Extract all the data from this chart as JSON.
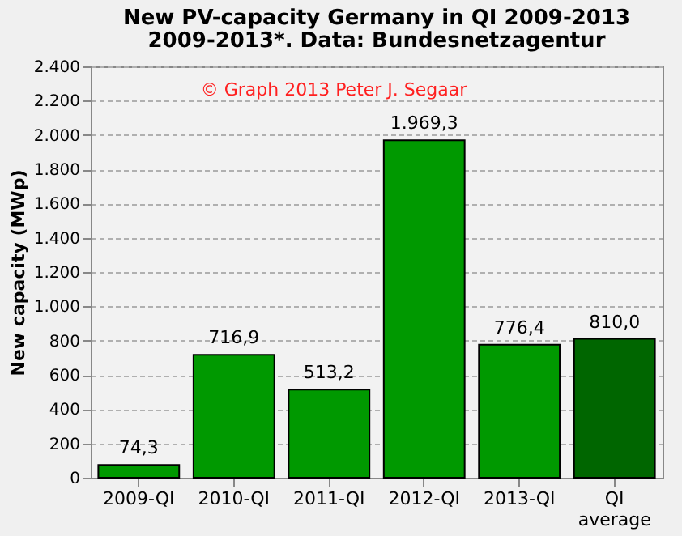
{
  "chart_data": {
    "type": "bar",
    "title": "New PV-capacity Germany in QI 2009-2013",
    "subtitle": "2009-2013*. Data: Bundesnetzagentur",
    "ylabel": "New capacity (MWp)",
    "annotations": [
      "© Graph 2013 Peter J. Segaar"
    ],
    "categories": [
      "2009-QI",
      "2010-QI",
      "2011-QI",
      "2012-QI",
      "2013-QI",
      "QI average"
    ],
    "values": [
      74.3,
      716.9,
      513.2,
      1969.3,
      776.4,
      810.0
    ],
    "value_labels": [
      "74,3",
      "716,9",
      "513,2",
      "1.969,3",
      "776,4",
      "810,0"
    ],
    "colors": [
      "#009900",
      "#009900",
      "#009900",
      "#009900",
      "#009900",
      "#006600"
    ],
    "ylim": [
      0,
      2400
    ],
    "yticks": [
      0,
      200,
      400,
      600,
      800,
      {
        "value": 1000,
        "label": "1.000"
      },
      {
        "value": 1200,
        "label": "1.200"
      },
      {
        "value": 1400,
        "label": "1.400"
      },
      {
        "value": 1600,
        "label": "1.600"
      },
      {
        "value": 1800,
        "label": "1.800"
      },
      {
        "value": 2000,
        "label": "2.000"
      },
      {
        "value": 2200,
        "label": "2.200"
      },
      {
        "value": 2400,
        "label": "2.400"
      }
    ],
    "grid": "y"
  }
}
